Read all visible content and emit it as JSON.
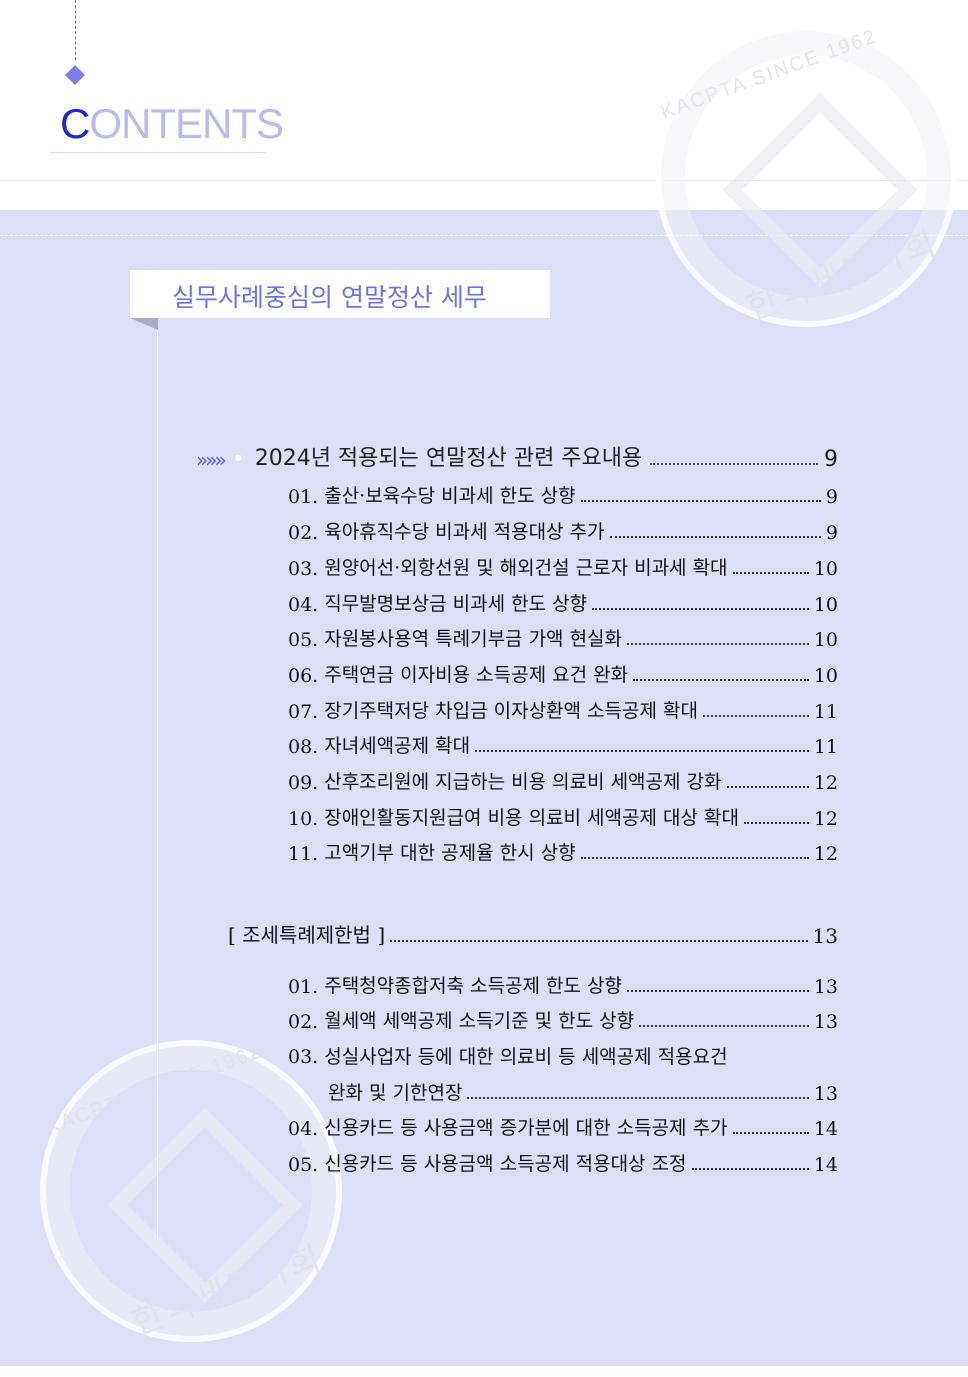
{
  "header": {
    "title_first_letter": "C",
    "title_rest": "ONTENTS"
  },
  "book": {
    "title": "실무사례중심의 연말정산 세무"
  },
  "watermark": {
    "top_text": "KACPTA SINCE 1962",
    "bottom_text": "한국세무사회"
  },
  "sections": [
    {
      "chevron": "»»»",
      "bullet": "•",
      "heading": "2024년 적용되는 연말정산 관련 주요내용",
      "page": "9",
      "items": [
        {
          "num": "01.",
          "text": "출산·보육수당 비과세 한도 상향",
          "page": "9"
        },
        {
          "num": "02.",
          "text": "육아휴직수당 비과세 적용대상 추가",
          "page": "9"
        },
        {
          "num": "03.",
          "text": "원양어선·외항선원 및 해외건설 근로자 비과세 확대",
          "page": "10"
        },
        {
          "num": "04.",
          "text": "직무발명보상금 비과세 한도 상향",
          "page": "10"
        },
        {
          "num": "05.",
          "text": "자원봉사용역 특례기부금 가액 현실화",
          "page": "10"
        },
        {
          "num": "06.",
          "text": "주택연금 이자비용 소득공제 요건 완화",
          "page": "10"
        },
        {
          "num": "07.",
          "text": "장기주택저당 차입금 이자상환액 소득공제 확대",
          "page": "11"
        },
        {
          "num": "08.",
          "text": "자녀세액공제 확대",
          "page": "11"
        },
        {
          "num": "09.",
          "text": "산후조리원에 지급하는 비용 의료비 세액공제 강화",
          "page": "12"
        },
        {
          "num": "10.",
          "text": "장애인활동지원급여 비용 의료비 세액공제 대상 확대",
          "page": "12"
        },
        {
          "num": "11.",
          "text": "고액기부 대한 공제율 한시 상향",
          "page": "12"
        }
      ]
    },
    {
      "heading": "[ 조세특례제한법 ]",
      "page": "13",
      "items": [
        {
          "num": "01.",
          "text": "주택청약종합저축 소득공제 한도 상향",
          "page": "13"
        },
        {
          "num": "02.",
          "text": "월세액 세액공제 소득기준 및 한도 상향",
          "page": "13"
        },
        {
          "num": "03.",
          "text": "성실사업자 등에 대한 의료비 등 세액공제 적용요건",
          "text_cont": "완화 및 기한연장",
          "page": "13"
        },
        {
          "num": "04.",
          "text": "신용카드 등 사용금액 증가분에 대한 소득공제 추가",
          "page": "14"
        },
        {
          "num": "05.",
          "text": "신용카드 등 사용금액 소득공제 적용대상 조정",
          "page": "14"
        }
      ]
    }
  ]
}
